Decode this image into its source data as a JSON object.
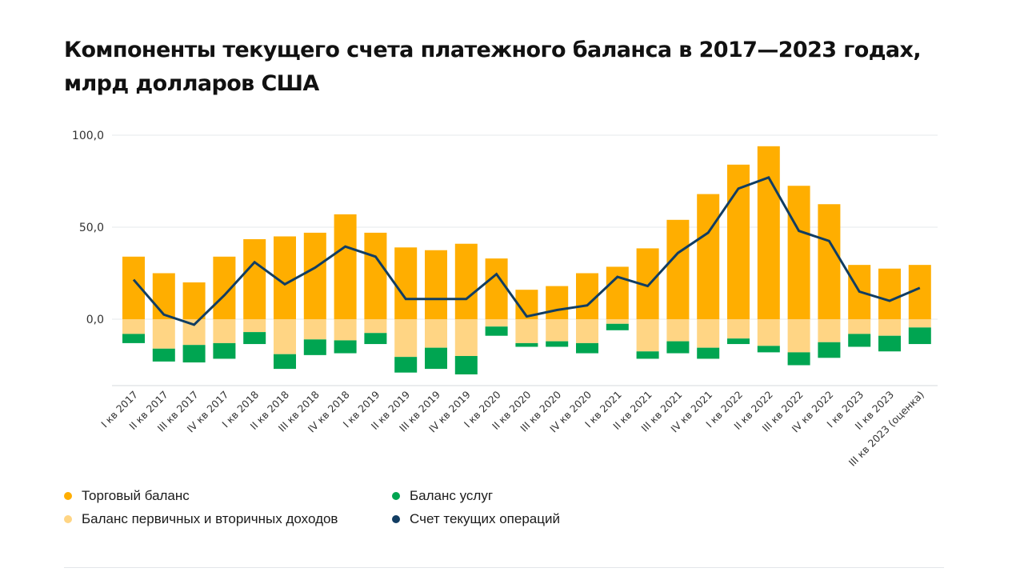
{
  "title": "Компоненты текущего счета платежного баланса в 2017—2023 годах, млрд долларов США",
  "colors": {
    "trade": "#FFAE00",
    "income": "#FFD584",
    "services": "#00A551",
    "current_account": "#113D62",
    "grid": "#E6E8EB",
    "axis_line": "#D4D9DE",
    "tick_text": "#333333"
  },
  "legend": [
    {
      "key": "trade",
      "label": "Торговый баланс"
    },
    {
      "key": "income",
      "label": "Баланс первичных и вторичных доходов"
    },
    {
      "key": "services",
      "label": "Баланс услуг"
    },
    {
      "key": "current_account",
      "label": "Счет текущих операций"
    }
  ],
  "chart_data": {
    "type": "bar",
    "stacked": true,
    "title": "Компоненты текущего счета платежного баланса в 2017—2023 годах, млрд долларов США",
    "xlabel": "",
    "ylabel": "",
    "ylim": [
      -37,
      100
    ],
    "yticks": [
      0,
      50,
      100
    ],
    "ytick_labels": [
      "0,0",
      "50,0",
      "100,0"
    ],
    "grid": true,
    "legend_position": "bottom",
    "categories": [
      "I кв 2017",
      "II кв 2017",
      "III кв 2017",
      "IV кв 2017",
      "I кв 2018",
      "II кв 2018",
      "III кв 2018",
      "IV кв 2018",
      "I кв 2019",
      "II кв 2019",
      "III кв 2019",
      "IV кв 2019",
      "I кв 2020",
      "II кв 2020",
      "III кв 2020",
      "IV кв 2020",
      "I кв 2021",
      "II кв 2021",
      "III кв 2021",
      "IV кв 2021",
      "I кв 2022",
      "II кв 2022",
      "III кв 2022",
      "IV кв 2022",
      "I кв 2023",
      "II кв 2023",
      "III кв 2023 (оценка)"
    ],
    "series": [
      {
        "name": "Торговый баланс",
        "key": "trade",
        "type": "bar",
        "values": [
          34,
          25,
          20,
          34,
          43.5,
          45,
          47,
          57,
          47,
          39,
          37.5,
          41,
          33,
          16,
          18,
          25,
          28.5,
          38.5,
          54,
          68,
          84,
          94,
          72.5,
          62.5,
          29.5,
          27.5,
          29.5
        ]
      },
      {
        "name": "Баланс первичных и вторичных доходов",
        "key": "income",
        "type": "bar",
        "values": [
          -8,
          -16,
          -14,
          -13,
          -7,
          -19,
          -11,
          -11.5,
          -7.5,
          -20.5,
          -15.5,
          -20,
          -4,
          -13,
          -12,
          -13,
          -2.5,
          -17.5,
          -12,
          -15.5,
          -10.5,
          -14.5,
          -18,
          -12.5,
          -8,
          -9,
          -4.5
        ]
      },
      {
        "name": "Баланс услуг",
        "key": "services",
        "type": "bar",
        "values": [
          -5,
          -7,
          -9.5,
          -8.5,
          -6.5,
          -8,
          -8.5,
          -7,
          -6,
          -8.5,
          -11.5,
          -10,
          -5,
          -2,
          -3,
          -5.5,
          -3.5,
          -4,
          -6.5,
          -6,
          -3,
          -3.5,
          -7,
          -8.5,
          -7,
          -8.5,
          -9
        ]
      },
      {
        "name": "Счет текущих операций",
        "key": "current_account",
        "type": "line",
        "values": [
          21.5,
          2.5,
          -3,
          13,
          31,
          19,
          28,
          39.5,
          34,
          11,
          11,
          11,
          24.5,
          1.5,
          5,
          7.5,
          23,
          18,
          36,
          47,
          71,
          77,
          48,
          42.5,
          15,
          10,
          17
        ]
      }
    ]
  }
}
